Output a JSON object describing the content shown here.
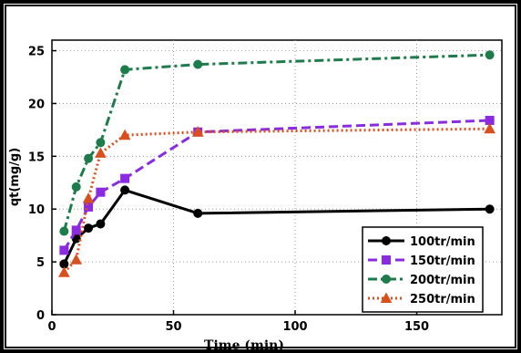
{
  "chart_data": {
    "type": "line",
    "xlabel": "Time (min)",
    "ylabel": "qt(mg/g)",
    "xlim": [
      0,
      185
    ],
    "ylim": [
      0,
      26
    ],
    "xticks": [
      0,
      50,
      100,
      150
    ],
    "yticks": [
      0,
      5,
      10,
      15,
      20,
      25
    ],
    "grid": true,
    "legend_position": "bottom-right",
    "series": [
      {
        "name": "100tr/min",
        "color": "#000000",
        "dash": "solid",
        "marker": "circle",
        "x": [
          5,
          10,
          15,
          20,
          30,
          60,
          180
        ],
        "y": [
          4.8,
          7.2,
          8.2,
          8.6,
          11.8,
          9.6,
          10.0
        ]
      },
      {
        "name": "150tr/min",
        "color": "#8a2be2",
        "dash": "dashed",
        "marker": "square",
        "x": [
          5,
          10,
          15,
          20,
          30,
          60,
          180
        ],
        "y": [
          6.1,
          8.0,
          10.2,
          11.6,
          12.9,
          17.3,
          18.4
        ]
      },
      {
        "name": "200tr/min",
        "color": "#1e7b4b",
        "dash": "dashdot",
        "marker": "circle",
        "x": [
          5,
          10,
          15,
          20,
          30,
          60,
          180
        ],
        "y": [
          7.9,
          12.1,
          14.8,
          16.3,
          23.2,
          23.7,
          24.6
        ]
      },
      {
        "name": "250tr/min",
        "color": "#d9501f",
        "dash": "dotted",
        "marker": "triangle",
        "x": [
          5,
          10,
          15,
          20,
          30,
          60,
          180
        ],
        "y": [
          4.0,
          5.2,
          11.0,
          15.3,
          17.0,
          17.3,
          17.6
        ]
      }
    ]
  }
}
